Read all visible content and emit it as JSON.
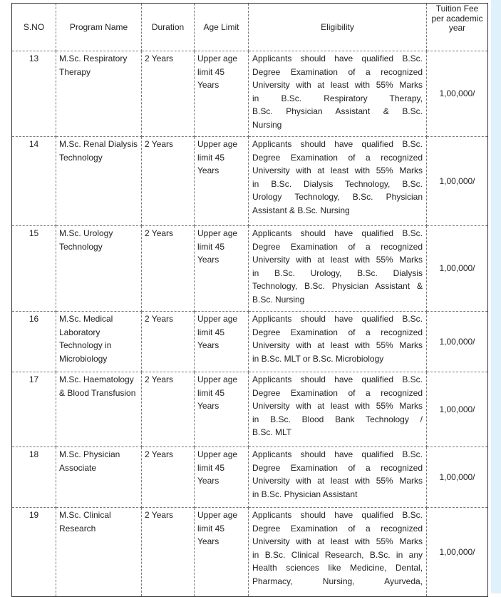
{
  "headers": {
    "sno": "S.NO",
    "program": "Program Name",
    "duration": "Duration",
    "age": "Age Limit",
    "eligibility": "Eligibility",
    "fee": "Tuition Fee per academic year"
  },
  "rows": [
    {
      "sno": "13",
      "program": "M.Sc. Respiratory Therapy",
      "duration": "2 Years",
      "age": "Upper age limit 45 Years",
      "eligibility": [
        "Applicants should have qualified B.Sc.",
        "Degree Examination of a recognized",
        "University with at least with 55% Marks",
        "in B.Sc. Respiratory Therapy,",
        "B.Sc. Physician Assistant & B.Sc.",
        "Nursing"
      ],
      "fee": "1,00,000/"
    },
    {
      "sno": "14",
      "program": "M.Sc. Renal Dialysis Technology",
      "duration": "2 Years",
      "age": "Upper age limit 45 Years",
      "eligibility": [
        "Applicants should have qualified B.Sc.",
        "Degree Examination of a recognized",
        "University with at least with 55% Marks",
        "in B.Sc. Dialysis Technology, B.Sc.",
        "Urology Technology, B.Sc. Physician",
        "Assistant & B.Sc. Nursing"
      ],
      "fee": "1,00,000/"
    },
    {
      "sno": "15",
      "program": "M.Sc. Urology Technology",
      "duration": "2 Years",
      "age": "Upper age limit 45 Years",
      "eligibility": [
        "Applicants should have qualified B.Sc.",
        "Degree Examination of a recognized",
        "University with at least with 55% Marks",
        "in B.Sc. Urology, B.Sc. Dialysis",
        "Technology, B.Sc. Physician Assistant &",
        "B.Sc. Nursing"
      ],
      "fee": "1,00,000/"
    },
    {
      "sno": "16",
      "program": "M.Sc. Medical Laboratory Technology in Microbiology",
      "duration": "2 Years",
      "age": "Upper age limit 45 Years",
      "eligibility": [
        "Applicants should have qualified B.Sc.",
        "Degree Examination of a recognized",
        "University with at least with 55% Marks",
        "in B.Sc. MLT or B.Sc. Microbiology"
      ],
      "fee": "1,00,000/"
    },
    {
      "sno": "17",
      "program": "M.Sc. Haematology & Blood Transfusion",
      "duration": "2 Years",
      "age": "Upper age limit 45 Years",
      "eligibility": [
        "Applicants should have qualified B.Sc.",
        "Degree Examination of a recognized",
        "University with at least with 55% Marks",
        "in B.Sc. Blood Bank Technology /",
        "B.Sc. MLT"
      ],
      "fee": "1,00,000/"
    },
    {
      "sno": "18",
      "program": "M.Sc. Physician Associate",
      "duration": "2 Years",
      "age": "Upper age limit 45 Years",
      "eligibility": [
        "Applicants should have qualified B.Sc.",
        "Degree Examination of a recognized",
        "University with at least with 55% Marks",
        "in B.Sc. Physician Assistant"
      ],
      "fee": "1,00,000/"
    },
    {
      "sno": "19",
      "program": "M.Sc. Clinical Research",
      "duration": "2 Years",
      "age": "Upper age limit 45 Years",
      "eligibility": [
        "Applicants should have qualified B.Sc.",
        "Degree Examination of a recognized",
        "University with at least with 55% Marks",
        "in B.Sc. Clinical Research, B.Sc. in any",
        "Health sciences like Medicine, Dental,",
        "Pharmacy, Nursing, Ayurveda,"
      ],
      "fee": "1,00,000/"
    }
  ]
}
